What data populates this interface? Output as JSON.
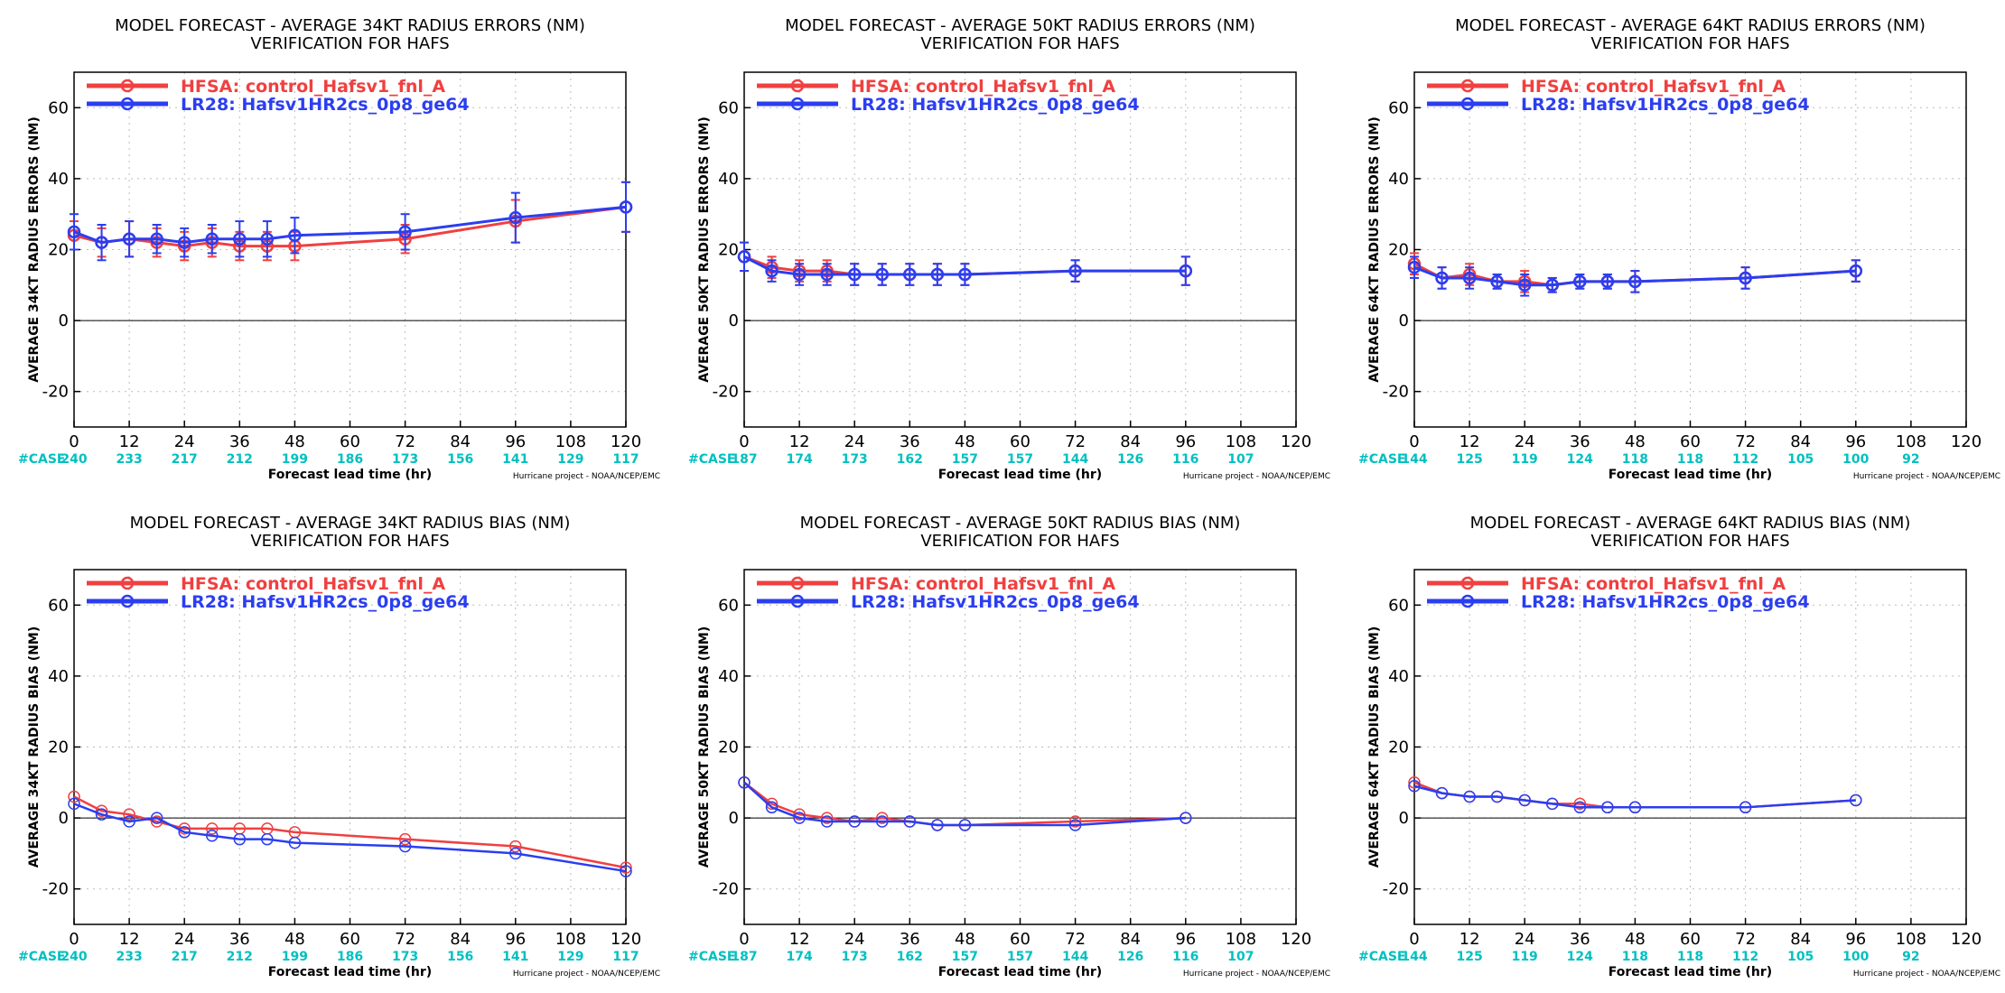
{
  "colors": {
    "hfsa": "#f04040",
    "lr28": "#2b3ef0",
    "case": "#00c0c0",
    "grid": "#bbbbbb"
  },
  "legend": {
    "hfsa": "HFSA: control_Hafsv1_fnl_A",
    "lr28": "LR28: Hafsv1HR2cs_0p8_ge64"
  },
  "case_label": "#CASE",
  "xlabel": "Forecast lead time (hr)",
  "credit": "Hurricane project - NOAA/NCEP/EMC",
  "chart_data": [
    {
      "type": "line",
      "title": "MODEL FORECAST - AVERAGE 34KT RADIUS ERRORS (NM)",
      "subtitle": "VERIFICATION FOR HAFS",
      "ylabel": "AVERAGE 34KT RADIUS ERRORS (NM)",
      "xlim": [
        0,
        120
      ],
      "ylim": [
        -30,
        70
      ],
      "xticks": [
        0,
        12,
        24,
        36,
        48,
        60,
        72,
        84,
        96,
        108,
        120
      ],
      "yticks": [
        -20,
        0,
        20,
        40,
        60
      ],
      "cases": [
        "240",
        "233",
        "217",
        "212",
        "199",
        "186",
        "173",
        "156",
        "141",
        "129",
        "117"
      ],
      "error_bars": true,
      "series": [
        {
          "key": "hfsa",
          "x": [
            0,
            6,
            12,
            18,
            24,
            30,
            36,
            42,
            48,
            72,
            96,
            120
          ],
          "y": [
            24,
            22,
            23,
            22,
            21,
            22,
            21,
            21,
            21,
            23,
            28,
            32
          ],
          "err": [
            4,
            4,
            5,
            4,
            4,
            4,
            4,
            4,
            4,
            4,
            6,
            7
          ]
        },
        {
          "key": "lr28",
          "x": [
            0,
            6,
            12,
            18,
            24,
            30,
            36,
            42,
            48,
            72,
            96,
            120
          ],
          "y": [
            25,
            22,
            23,
            23,
            22,
            23,
            23,
            23,
            24,
            25,
            29,
            32
          ],
          "err": [
            5,
            5,
            5,
            4,
            4,
            4,
            5,
            5,
            5,
            5,
            7,
            7
          ]
        }
      ]
    },
    {
      "type": "line",
      "title": "MODEL FORECAST - AVERAGE 50KT RADIUS ERRORS (NM)",
      "subtitle": "VERIFICATION FOR HAFS",
      "ylabel": "AVERAGE 50KT RADIUS ERRORS (NM)",
      "xlim": [
        0,
        120
      ],
      "ylim": [
        -30,
        70
      ],
      "xticks": [
        0,
        12,
        24,
        36,
        48,
        60,
        72,
        84,
        96,
        108,
        120
      ],
      "yticks": [
        -20,
        0,
        20,
        40,
        60
      ],
      "cases": [
        "187",
        "174",
        "173",
        "162",
        "157",
        "157",
        "144",
        "126",
        "116",
        "107",
        ""
      ],
      "error_bars": true,
      "series": [
        {
          "key": "hfsa",
          "x": [
            0,
            6,
            12,
            18,
            24,
            30,
            36,
            42,
            48,
            72,
            96
          ],
          "y": [
            18,
            15,
            14,
            14,
            13,
            13,
            13,
            13,
            13,
            14,
            14
          ],
          "err": [
            4,
            3,
            3,
            3,
            3,
            3,
            3,
            3,
            3,
            3,
            4
          ]
        },
        {
          "key": "lr28",
          "x": [
            0,
            6,
            12,
            18,
            24,
            30,
            36,
            42,
            48,
            72,
            96
          ],
          "y": [
            18,
            14,
            13,
            13,
            13,
            13,
            13,
            13,
            13,
            14,
            14
          ],
          "err": [
            4,
            3,
            3,
            3,
            3,
            3,
            3,
            3,
            3,
            3,
            4
          ]
        }
      ]
    },
    {
      "type": "line",
      "title": "MODEL FORECAST - AVERAGE 64KT RADIUS ERRORS (NM)",
      "subtitle": "VERIFICATION FOR HAFS",
      "ylabel": "AVERAGE 64KT RADIUS ERRORS (NM)",
      "xlim": [
        0,
        120
      ],
      "ylim": [
        -30,
        70
      ],
      "xticks": [
        0,
        12,
        24,
        36,
        48,
        60,
        72,
        84,
        96,
        108,
        120
      ],
      "yticks": [
        -20,
        0,
        20,
        40,
        60
      ],
      "cases": [
        "144",
        "125",
        "119",
        "124",
        "118",
        "118",
        "112",
        "105",
        "100",
        "92",
        ""
      ],
      "error_bars": true,
      "series": [
        {
          "key": "hfsa",
          "x": [
            0,
            6,
            12,
            18,
            24,
            30,
            36,
            42,
            48,
            72,
            96
          ],
          "y": [
            16,
            12,
            13,
            11,
            11,
            10,
            11,
            11,
            11,
            12,
            14
          ],
          "err": [
            3,
            3,
            3,
            2,
            3,
            2,
            2,
            2,
            3,
            3,
            3
          ]
        },
        {
          "key": "lr28",
          "x": [
            0,
            6,
            12,
            18,
            24,
            30,
            36,
            42,
            48,
            72,
            96
          ],
          "y": [
            15,
            12,
            12,
            11,
            10,
            10,
            11,
            11,
            11,
            12,
            14
          ],
          "err": [
            3,
            3,
            3,
            2,
            3,
            2,
            2,
            2,
            3,
            3,
            3
          ]
        }
      ]
    },
    {
      "type": "line",
      "title": "MODEL FORECAST - AVERAGE 34KT RADIUS BIAS (NM)",
      "subtitle": "VERIFICATION FOR HAFS",
      "ylabel": "AVERAGE 34KT RADIUS BIAS (NM)",
      "xlim": [
        0,
        120
      ],
      "ylim": [
        -30,
        70
      ],
      "xticks": [
        0,
        12,
        24,
        36,
        48,
        60,
        72,
        84,
        96,
        108,
        120
      ],
      "yticks": [
        -20,
        0,
        20,
        40,
        60
      ],
      "cases": [
        "240",
        "233",
        "217",
        "212",
        "199",
        "186",
        "173",
        "156",
        "141",
        "129",
        "117"
      ],
      "error_bars": false,
      "series": [
        {
          "key": "hfsa",
          "x": [
            0,
            6,
            12,
            18,
            24,
            30,
            36,
            42,
            48,
            72,
            96,
            120
          ],
          "y": [
            6,
            2,
            1,
            -1,
            -3,
            -3,
            -3,
            -3,
            -4,
            -6,
            -8,
            -14
          ]
        },
        {
          "key": "lr28",
          "x": [
            0,
            6,
            12,
            18,
            24,
            30,
            36,
            42,
            48,
            72,
            96,
            120
          ],
          "y": [
            4,
            1,
            -1,
            0,
            -4,
            -5,
            -6,
            -6,
            -7,
            -8,
            -10,
            -15
          ]
        }
      ]
    },
    {
      "type": "line",
      "title": "MODEL FORECAST - AVERAGE 50KT RADIUS BIAS (NM)",
      "subtitle": "VERIFICATION FOR HAFS",
      "ylabel": "AVERAGE 50KT RADIUS BIAS (NM)",
      "xlim": [
        0,
        120
      ],
      "ylim": [
        -30,
        70
      ],
      "xticks": [
        0,
        12,
        24,
        36,
        48,
        60,
        72,
        84,
        96,
        108,
        120
      ],
      "yticks": [
        -20,
        0,
        20,
        40,
        60
      ],
      "cases": [
        "187",
        "174",
        "173",
        "162",
        "157",
        "157",
        "144",
        "126",
        "116",
        "107",
        ""
      ],
      "error_bars": false,
      "series": [
        {
          "key": "hfsa",
          "x": [
            0,
            6,
            12,
            18,
            24,
            30,
            36,
            42,
            48,
            72,
            96
          ],
          "y": [
            10,
            4,
            1,
            0,
            -1,
            0,
            -1,
            -2,
            -2,
            -1,
            0
          ]
        },
        {
          "key": "lr28",
          "x": [
            0,
            6,
            12,
            18,
            24,
            30,
            36,
            42,
            48,
            72,
            96
          ],
          "y": [
            10,
            3,
            0,
            -1,
            -1,
            -1,
            -1,
            -2,
            -2,
            -2,
            0
          ]
        }
      ]
    },
    {
      "type": "line",
      "title": "MODEL FORECAST - AVERAGE 64KT RADIUS BIAS (NM)",
      "subtitle": "VERIFICATION FOR HAFS",
      "ylabel": "AVERAGE 64KT RADIUS BIAS (NM)",
      "xlim": [
        0,
        120
      ],
      "ylim": [
        -30,
        70
      ],
      "xticks": [
        0,
        12,
        24,
        36,
        48,
        60,
        72,
        84,
        96,
        108,
        120
      ],
      "yticks": [
        -20,
        0,
        20,
        40,
        60
      ],
      "cases": [
        "144",
        "125",
        "119",
        "124",
        "118",
        "118",
        "112",
        "105",
        "100",
        "92",
        ""
      ],
      "error_bars": false,
      "series": [
        {
          "key": "hfsa",
          "x": [
            0,
            6,
            12,
            18,
            24,
            30,
            36,
            42,
            48,
            72,
            96
          ],
          "y": [
            10,
            7,
            6,
            6,
            5,
            4,
            4,
            3,
            3,
            3,
            5
          ]
        },
        {
          "key": "lr28",
          "x": [
            0,
            6,
            12,
            18,
            24,
            30,
            36,
            42,
            48,
            72,
            96
          ],
          "y": [
            9,
            7,
            6,
            6,
            5,
            4,
            3,
            3,
            3,
            3,
            5
          ]
        }
      ]
    }
  ]
}
